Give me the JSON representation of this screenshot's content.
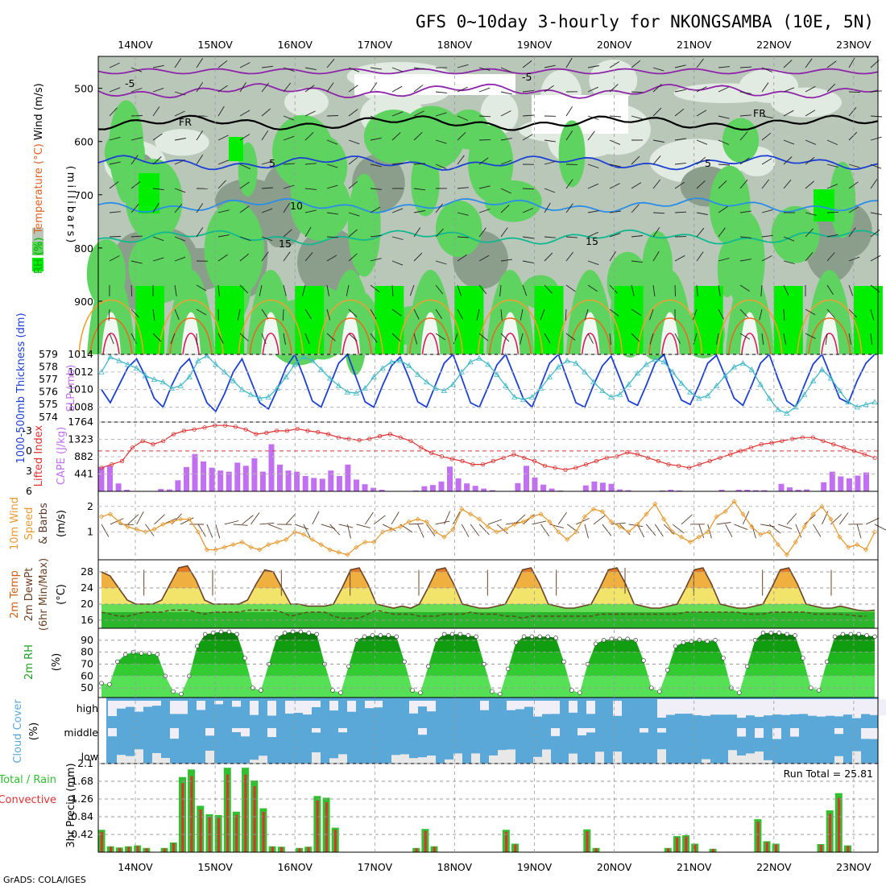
{
  "title": "GFS 0~10day 3-hourly for NKONGSAMBA (10E, 5N)",
  "footer": "GrADS: COLA/IGES",
  "run_total_label": "Run Total = 25.81",
  "colors": {
    "rh_dark": "#8b9e8b",
    "rh_mid": "#b9c7b9",
    "rh_light": "#e1ebe1",
    "rh_green": "#5fd35f",
    "rh_bright": "#00ee00",
    "slp": "#1c3fd4",
    "thickness": "#3fb8c8",
    "lifted": "#e03030",
    "cape": "#c070f0",
    "wind10": "#e89a30",
    "barb": "#5a3a2a",
    "cloud": "#5aa8d8",
    "rain_total": "#30c030",
    "rain_conv": "#e03030"
  },
  "chart_data": [
    {
      "panel": "upper_air",
      "type": "heatmap",
      "ylabel_parts": [
        "RH (%)",
        "Temperature (°C)",
        "Wind (m/s)"
      ],
      "ylabel_right": "(millibars)",
      "y_ticks": [
        500,
        600,
        700,
        800,
        900
      ],
      "ylim": [
        1000,
        440
      ],
      "x_ticks": [
        "14NOV",
        "15NOV",
        "16NOV",
        "17NOV",
        "18NOV",
        "19NOV",
        "20NOV",
        "21NOV",
        "22NOV",
        "23NOV"
      ],
      "isotherm_labels": [
        "-5",
        "FR",
        "5",
        "10",
        "15"
      ],
      "isotherms": [
        {
          "label": "-5",
          "level_mb": 505,
          "color": "#8e24aa"
        },
        {
          "label": "FR",
          "level_mb": 565,
          "color": "#000000"
        },
        {
          "label": "5",
          "level_mb": 640,
          "color": "#1c3fd4"
        },
        {
          "label": "10",
          "level_mb": 720,
          "color": "#2a8ee8"
        },
        {
          "label": "15",
          "level_mb": 780,
          "color": "#10b890"
        }
      ],
      "rh_legend": [
        "50",
        "70",
        "90"
      ]
    },
    {
      "panel": "slp_thickness",
      "type": "line",
      "ylabel": "SLP (mb)",
      "ylabel2": "1000-500mb Thickness (dm)",
      "y_ticks": [
        1008,
        1010,
        1012,
        1014
      ],
      "y2_ticks": [
        574,
        575,
        576,
        577,
        578,
        579
      ],
      "ylim": [
        1006.3,
        1014
      ],
      "y2lim": [
        573.6,
        579
      ],
      "series": [
        {
          "name": "SLP",
          "values": [
            1010,
            1008.5,
            1010.5,
            1012.5,
            1013.5,
            1011.5,
            1009,
            1008,
            1010.5,
            1012.5,
            1013.5,
            1011,
            1008.5,
            1007.5,
            1009.5,
            1012,
            1013.5,
            1011,
            1008.5,
            1007.8,
            1010,
            1012.5,
            1014,
            1011.5,
            1008.7,
            1008,
            1010.5,
            1013,
            1014,
            1011.3,
            1008.6,
            1008,
            1010.5,
            1012.7,
            1013.7,
            1011.3,
            1008.6,
            1008,
            1010.5,
            1013,
            1014,
            1011.3,
            1008.5,
            1008,
            1010.3,
            1012.8,
            1014,
            1011.5,
            1009,
            1008,
            1010.5,
            1013,
            1014,
            1011.2,
            1008.5,
            1008,
            1010.5,
            1012.7,
            1013.8,
            1011.3,
            1008.7,
            1008.2,
            1010.5,
            1013,
            1014,
            1011.2,
            1008.8,
            1008.3,
            1010.5,
            1013,
            1013.9,
            1011.5,
            1009,
            1008.2,
            1010.5,
            1013,
            1014,
            1011.2,
            1008.7,
            1008,
            1010.5,
            1012.9,
            1014,
            1011.5,
            1009,
            1008.5,
            1011,
            1013,
            1014
          ]
        },
        {
          "name": "Thickness",
          "values": [
            577.6,
            578.8,
            578.5,
            578.2,
            577.9,
            577.3,
            577.0,
            576.8,
            576.3,
            576.5,
            577.2,
            578.5,
            578.9,
            578.2,
            577.6,
            576.9,
            576.2,
            575.8,
            575.5,
            575.6,
            576.3,
            577.2,
            578.2,
            578.8,
            578.5,
            577.8,
            577.1,
            576.5,
            576.0,
            575.9,
            576.3,
            577.2,
            577.9,
            578.4,
            578.5,
            578.1,
            577.4,
            576.8,
            576.3,
            576.1,
            576.6,
            577.6,
            578.4,
            578.7,
            578.2,
            577.4,
            576.5,
            575.6,
            575.4,
            575.6,
            576.3,
            577.2,
            578.0,
            578.5,
            578.3,
            577.6,
            576.8,
            576.1,
            575.6,
            575.8,
            576.6,
            577.5,
            578.2,
            578.6,
            578.4,
            577.6,
            576.7,
            576.0,
            575.5,
            575.7,
            576.5,
            577.3,
            578.0,
            578.3,
            577.8,
            576.6,
            575.5,
            574.6,
            574.3,
            574.8,
            575.8,
            576.9,
            577.8,
            577.1,
            576.1,
            575.2,
            574.8,
            575.0,
            575.2
          ]
        }
      ]
    },
    {
      "panel": "lifted_cape",
      "type": "bar",
      "ylabel": "Lifted Index",
      "ylabel2": "CAPE (J/kg)",
      "y_ticks_left": [
        "-3",
        "0",
        "3",
        "6"
      ],
      "y_ticks_right": [
        "441",
        "882",
        "1323",
        "1764"
      ],
      "series": [
        {
          "name": "CAPE",
          "values": [
            620,
            650,
            200,
            40,
            10,
            10,
            0,
            60,
            50,
            280,
            620,
            950,
            760,
            600,
            530,
            500,
            730,
            650,
            840,
            500,
            1200,
            680,
            530,
            500,
            390,
            340,
            320,
            530,
            390,
            680,
            300,
            180,
            90,
            40,
            0,
            0,
            0,
            20,
            130,
            160,
            250,
            630,
            330,
            200,
            140,
            70,
            30,
            0,
            0,
            210,
            650,
            350,
            170,
            70,
            20,
            10,
            0,
            150,
            250,
            220,
            190,
            50,
            30,
            0,
            0,
            10,
            20,
            40,
            20,
            0,
            0,
            10,
            0,
            40,
            0,
            40,
            40,
            30,
            30,
            0,
            190,
            100,
            40,
            50,
            10,
            230,
            500,
            380,
            330,
            400,
            480,
            0
          ]
        },
        {
          "name": "Lifted Index",
          "values": [
            2.5,
            2.0,
            1.5,
            -0.5,
            -1.5,
            -1.0,
            -1.5,
            -2.5,
            -3.0,
            -3.2,
            -3.5,
            -3.8,
            -3.8,
            -3.6,
            -3.2,
            -2.5,
            -2.7,
            -3.0,
            -3.0,
            -3.3,
            -3.0,
            -2.8,
            -2.5,
            -2.0,
            -1.8,
            -1.6,
            -1.8,
            -2.2,
            -2.5,
            -2.0,
            -1.5,
            -0.5,
            0.3,
            0.8,
            1.2,
            1.5,
            2.0,
            2.0,
            1.5,
            1.0,
            0.5,
            1.0,
            1.5,
            2.2,
            2.5,
            2.8,
            2.5,
            2.0,
            1.5,
            1.0,
            0.8,
            0.2,
            0.5,
            1.0,
            1.5,
            2.0,
            2.2,
            2.5,
            2.0,
            1.5,
            1.0,
            0.5,
            0.0,
            -0.5,
            -1.0,
            -1.2,
            -1.5,
            -1.8,
            -2.0,
            -2.0,
            -1.5,
            -1.0,
            -0.5,
            0.0,
            0.5,
            1.0
          ]
        }
      ]
    },
    {
      "panel": "wind10m",
      "type": "line",
      "ylabel": "10m Wind Speed & Barbs (m/s)",
      "y_ticks": [
        1,
        2
      ],
      "ylim": [
        0,
        2.5
      ],
      "series": [
        {
          "name": "Speed",
          "values": [
            1.6,
            1.7,
            1.4,
            1.2,
            1.1,
            1.0,
            1.1,
            1.3,
            1.4,
            1.5,
            1.5,
            1.0,
            0.3,
            0.3,
            0.4,
            0.5,
            0.6,
            0.4,
            0.3,
            0.5,
            0.6,
            0.7,
            1.0,
            0.9,
            0.7,
            0.5,
            0.3,
            0.2,
            0.1,
            0.4,
            0.6,
            0.6,
            1.0,
            1.1,
            1.2,
            1.4,
            1.5,
            1.4,
            1.0,
            0.8,
            1.1,
            1.9,
            1.7,
            1.5,
            1.2,
            1.0,
            1.1,
            1.3,
            1.4,
            1.6,
            1.7,
            1.4,
            1.0,
            0.7,
            1.0,
            1.6,
            1.9,
            1.8,
            1.4,
            1.2,
            1.0,
            1.3,
            1.7,
            2.1,
            1.5,
            1.0,
            0.8,
            0.6,
            0.8,
            1.0,
            1.6,
            1.8,
            2.2,
            1.7,
            1.2,
            0.9,
            1.0,
            0.5,
            0.1,
            0.6,
            1.2,
            1.7,
            2.0,
            1.5,
            0.8,
            0.4,
            0.5,
            0.3,
            1.0
          ]
        }
      ]
    },
    {
      "panel": "temp2m",
      "type": "area",
      "ylabel": "2m Temp 2m DewPt (6hr Min/Max) (°C)",
      "y_ticks": [
        16,
        20,
        24,
        28
      ],
      "ylim": [
        14,
        31
      ],
      "series": [
        {
          "name": "Temp",
          "values": [
            28,
            27,
            24,
            21,
            20,
            20,
            20,
            21,
            25,
            29,
            29.5,
            26,
            21,
            20,
            20,
            20,
            20,
            21,
            25,
            28.5,
            28,
            24,
            20,
            20,
            19.5,
            19.5,
            19.5,
            20,
            24,
            28.5,
            29,
            25,
            20,
            19.5,
            19,
            19.5,
            19,
            20,
            24,
            28.5,
            29,
            25,
            20,
            19.5,
            19,
            19,
            19.5,
            20,
            24,
            28.5,
            29,
            25,
            20,
            19.5,
            19,
            19,
            19.5,
            20,
            24,
            28.5,
            29,
            25,
            20,
            19.5,
            19,
            19,
            19.5,
            20,
            24,
            28.5,
            29,
            25,
            20,
            19.5,
            19,
            19,
            19.5,
            20,
            24,
            28.5,
            29,
            25,
            20,
            19.5,
            19,
            19,
            19.5,
            19,
            18.5,
            18.3,
            18.5
          ]
        },
        {
          "name": "DewPt",
          "values": [
            18,
            17.5,
            17,
            17,
            17.5,
            18,
            18,
            18,
            18.5,
            18.5,
            18.5,
            18,
            17.5,
            18,
            18,
            18,
            18,
            18.5,
            18.5,
            18.5,
            18.5,
            18,
            17,
            17.5,
            18,
            18,
            18,
            17,
            16.5,
            16.5,
            16.5,
            17.5,
            18.5,
            18,
            17.5,
            17.5,
            17.5,
            17,
            17,
            17,
            17.5,
            17.5,
            17.5,
            18,
            17.5,
            17.5,
            17.5,
            17,
            17,
            16.5,
            17,
            17,
            17,
            17,
            17,
            17,
            17,
            17,
            17.5,
            17.5,
            17.5,
            17.5,
            17.5,
            17.5,
            17.5,
            17.5,
            17.5,
            17.5,
            18,
            18,
            18,
            18,
            18,
            18,
            18,
            17.5,
            17.5,
            17.5,
            18,
            18,
            18,
            18,
            18,
            17.5,
            17.5,
            17.5,
            17.5,
            17.3,
            17,
            17
          ]
        }
      ]
    },
    {
      "panel": "rh2m",
      "type": "area",
      "ylabel": "2m RH (%)",
      "y_ticks": [
        50,
        60,
        70,
        80,
        90
      ],
      "ylim": [
        42,
        100
      ],
      "series": [
        {
          "name": "RH",
          "values": [
            54,
            53,
            72,
            78,
            80,
            79,
            79,
            78,
            60,
            47,
            45,
            60,
            85,
            95,
            96,
            97,
            97,
            95,
            75,
            50,
            48,
            70,
            92,
            96,
            97,
            97,
            96,
            95,
            70,
            48,
            46,
            68,
            90,
            93,
            94,
            94,
            94,
            93,
            72,
            48,
            46,
            68,
            90,
            95,
            95,
            95,
            94,
            93,
            70,
            47,
            45,
            66,
            88,
            93,
            93,
            93,
            93,
            92,
            72,
            48,
            46,
            70,
            87,
            90,
            91,
            91,
            91,
            90,
            73,
            50,
            47,
            65,
            85,
            88,
            89,
            90,
            89,
            90,
            75,
            50,
            46,
            68,
            90,
            96,
            96,
            96,
            95,
            94,
            75,
            50,
            48,
            72,
            93,
            95,
            95,
            95,
            94,
            93
          ]
        }
      ]
    },
    {
      "panel": "cloud",
      "type": "heatmap",
      "ylabel": "Cloud Cover (%)",
      "y_ticks": [
        "high",
        "middle",
        "low"
      ]
    },
    {
      "panel": "precip",
      "type": "bar",
      "ylabel": "3hr Precip (mm)",
      "legend": [
        "Total / Rain",
        "Convective"
      ],
      "y_ticks": [
        "0.42",
        "0.84",
        "1.26",
        "1.68",
        "2.1"
      ],
      "ylim": [
        0,
        2.1
      ],
      "x_ticks": [
        "14NOV",
        "15NOV",
        "16NOV",
        "17NOV",
        "18NOV",
        "19NOV",
        "20NOV",
        "21NOV",
        "22NOV",
        "23NOV"
      ],
      "series": [
        {
          "name": "Total",
          "values": [
            0.53,
            0.14,
            0.11,
            0.14,
            0.16,
            0.1,
            0,
            0.1,
            0.23,
            1.78,
            1.96,
            1.1,
            0.9,
            0.88,
            2.0,
            0.96,
            2.0,
            1.7,
            1.04,
            0.14,
            0.13,
            0,
            0.1,
            0.13,
            1.33,
            1.29,
            0.58,
            0,
            0,
            0,
            0,
            0,
            0,
            0,
            0,
            0.1,
            0.55,
            0.14,
            0,
            0,
            0,
            0,
            0,
            0,
            0,
            0.53,
            0.2,
            0,
            0,
            0,
            0,
            0,
            0,
            0,
            0.54,
            0.1,
            0,
            0,
            0,
            0,
            0,
            0,
            0,
            0.1,
            0.38,
            0.4,
            0.2,
            0,
            0.08,
            0,
            0,
            0,
            0,
            0.78,
            0.26,
            0.2,
            0,
            0,
            0,
            0,
            0.19,
            0.99,
            1.4,
            0.16,
            0,
            0,
            0
          ]
        }
      ]
    }
  ]
}
